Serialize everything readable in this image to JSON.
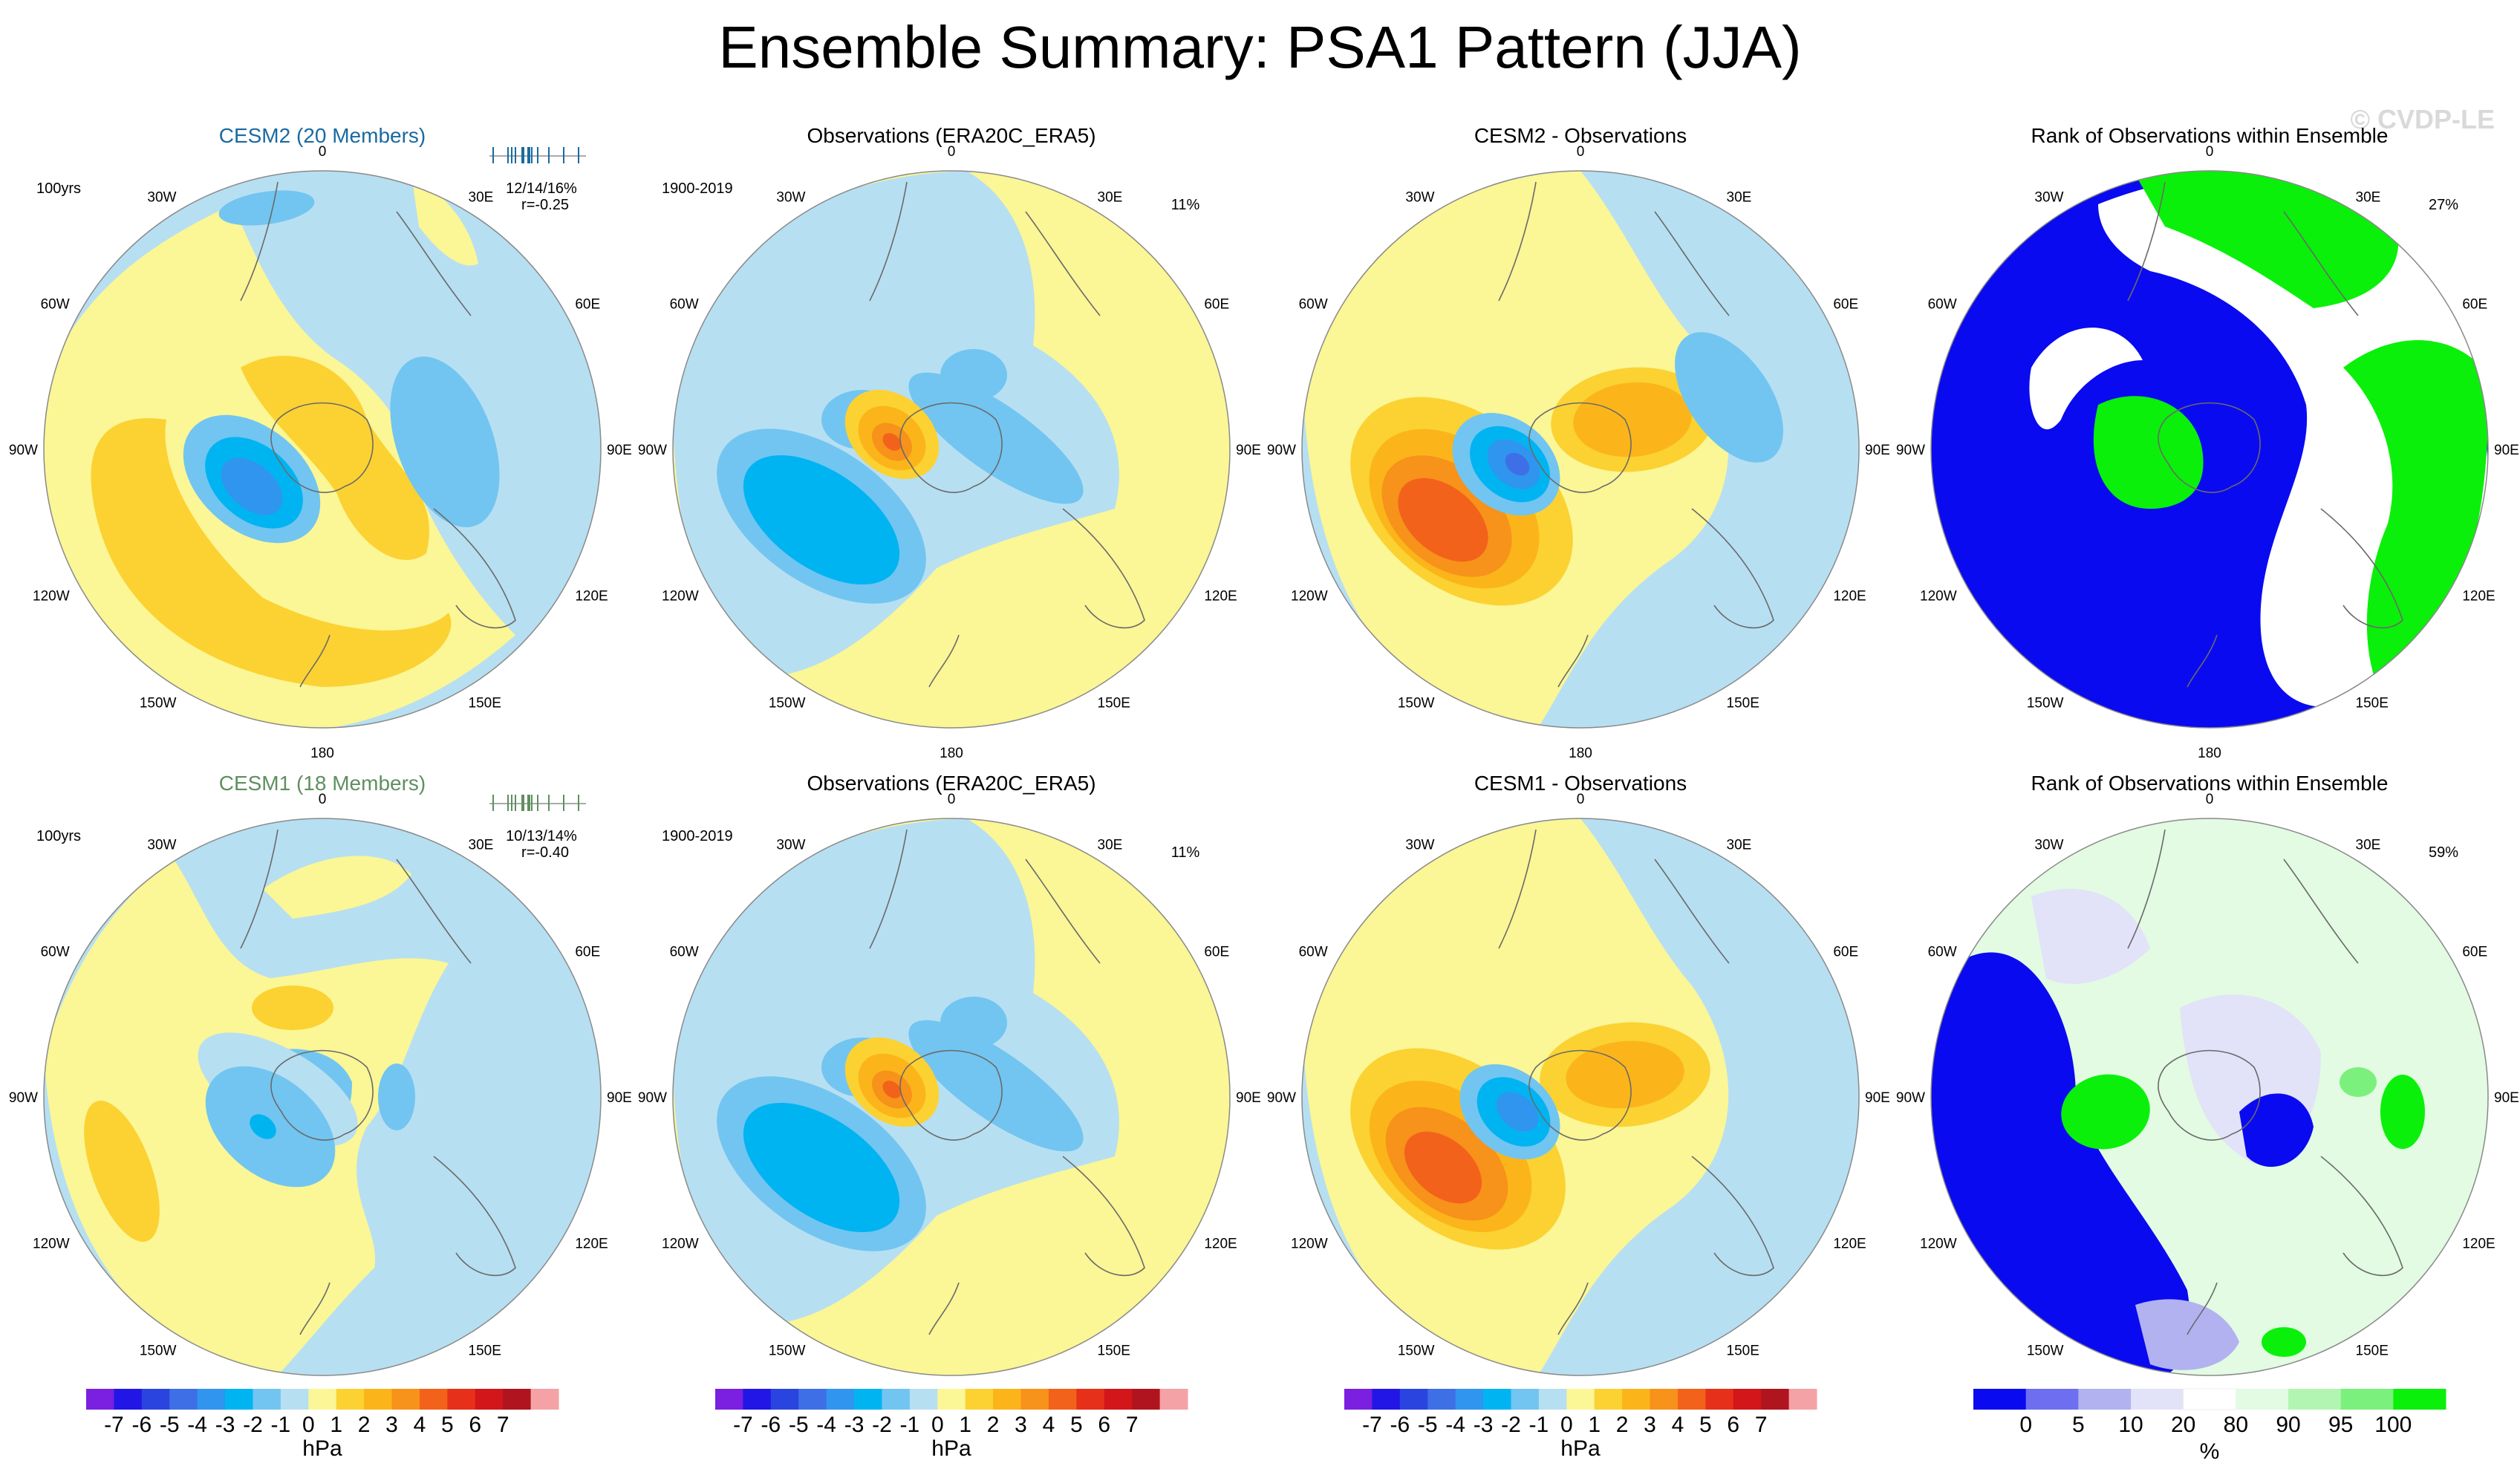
{
  "title": "Ensemble Summary: PSA1 Pattern (JJA)",
  "watermark": "© CVDP-LE",
  "colors": {
    "hpa_scale": [
      "#7b1fe0",
      "#2216e6",
      "#2a44e0",
      "#3e6fe6",
      "#2f95ee",
      "#00b4f2",
      "#72c5f0",
      "#b7dff2",
      "#fbf696",
      "#fbd232",
      "#fbb51a",
      "#f7921a",
      "#f3621a",
      "#e6301a",
      "#d2161a",
      "#b0141e",
      "#f4a2a6"
    ],
    "rank_scale": [
      "#0a0af0",
      "#6e6ef0",
      "#b2b2f0",
      "#e2e2f8",
      "#ffffff",
      "#e2fbe2",
      "#b2f5b2",
      "#7cf07c",
      "#0af00a"
    ],
    "cesm2_title": "#1a6aa0",
    "cesm1_title": "#5f8f5f"
  },
  "longitude_labels": [
    "0",
    "30E",
    "60E",
    "90E",
    "120E",
    "150E",
    "180",
    "150W",
    "120W",
    "90W",
    "60W",
    "30W"
  ],
  "panels": [
    {
      "title": "CESM2 (20 Members)",
      "top_left": "100yrs",
      "ensemble_stats": "12/14/16%",
      "correlation": "r=-0.25"
    },
    {
      "title": "Observations (ERA20C_ERA5)",
      "top_left": "1900-2019",
      "top_right": "11%"
    },
    {
      "title": "CESM2 - Observations"
    },
    {
      "title": "Rank of Observations within Ensemble",
      "top_right": "27%"
    },
    {
      "title": "CESM1 (18 Members)",
      "top_left": "100yrs",
      "ensemble_stats": "10/13/14%",
      "correlation": "r=-0.40"
    },
    {
      "title": "Observations (ERA20C_ERA5)",
      "top_left": "1900-2019",
      "top_right": "11%"
    },
    {
      "title": "CESM1 - Observations"
    },
    {
      "title": "Rank of Observations within Ensemble",
      "top_right": "59%"
    }
  ],
  "colorbars": {
    "hpa_label": "hPa",
    "hpa_ticks": [
      "-7",
      "-6",
      "-5",
      "-4",
      "-3",
      "-2",
      "-1",
      "0",
      "1",
      "2",
      "3",
      "4",
      "5",
      "6",
      "7"
    ],
    "rank_label": "%",
    "rank_ticks": [
      "0",
      "5",
      "10",
      "20",
      "80",
      "90",
      "95",
      "100"
    ]
  },
  "chart_data": [
    {
      "type": "heatmap",
      "title": "CESM2 (20 Members)",
      "units": "hPa",
      "projection": "south-polar stereographic",
      "value_range": [
        -7,
        7
      ],
      "features": [
        {
          "name": "negative center",
          "lon": "120W",
          "value": -3
        },
        {
          "name": "positive center",
          "lon": "150W",
          "value": 2
        },
        {
          "name": "positive center",
          "lon": "90W",
          "value": 2
        },
        {
          "name": "negative center",
          "lon": "90E",
          "value": -1
        }
      ]
    },
    {
      "type": "heatmap",
      "title": "Observations (ERA20C_ERA5)",
      "units": "hPa",
      "value_range": [
        -7,
        7
      ],
      "features": [
        {
          "name": "negative center",
          "lon": "120W",
          "value": -3
        },
        {
          "name": "positive center",
          "lon": "70W",
          "value": 4
        },
        {
          "name": "negative center",
          "lon": "30E",
          "value": -1
        }
      ]
    },
    {
      "type": "heatmap",
      "title": "CESM2 - Observations",
      "units": "hPa",
      "value_range": [
        -7,
        7
      ],
      "features": [
        {
          "name": "positive center",
          "lon": "120W",
          "value": 5
        },
        {
          "name": "negative center",
          "lon": "80W",
          "value": -5
        },
        {
          "name": "positive center",
          "lon": "30E",
          "value": 3
        }
      ]
    },
    {
      "type": "heatmap",
      "title": "Rank of Observations within Ensemble",
      "units": "%",
      "value_range": [
        0,
        100
      ],
      "summary": "27%"
    },
    {
      "type": "heatmap",
      "title": "CESM1 (18 Members)",
      "units": "hPa",
      "value_range": [
        -7,
        7
      ],
      "features": [
        {
          "name": "negative center",
          "lon": "110W",
          "value": -3
        },
        {
          "name": "positive center",
          "lon": "120W",
          "value": 1
        },
        {
          "name": "positive center",
          "lon": "0",
          "value": 1
        }
      ]
    },
    {
      "type": "heatmap",
      "title": "Observations (ERA20C_ERA5)",
      "units": "hPa",
      "value_range": [
        -7,
        7
      ],
      "features": [
        {
          "name": "negative center",
          "lon": "120W",
          "value": -3
        },
        {
          "name": "positive center",
          "lon": "70W",
          "value": 4
        }
      ]
    },
    {
      "type": "heatmap",
      "title": "CESM1 - Observations",
      "units": "hPa",
      "value_range": [
        -7,
        7
      ],
      "features": [
        {
          "name": "positive center",
          "lon": "120W",
          "value": 5
        },
        {
          "name": "negative center",
          "lon": "80W",
          "value": -4
        },
        {
          "name": "positive center",
          "lon": "30E",
          "value": 3
        }
      ]
    },
    {
      "type": "heatmap",
      "title": "Rank of Observations within Ensemble",
      "units": "%",
      "value_range": [
        0,
        100
      ],
      "summary": "59%"
    }
  ]
}
